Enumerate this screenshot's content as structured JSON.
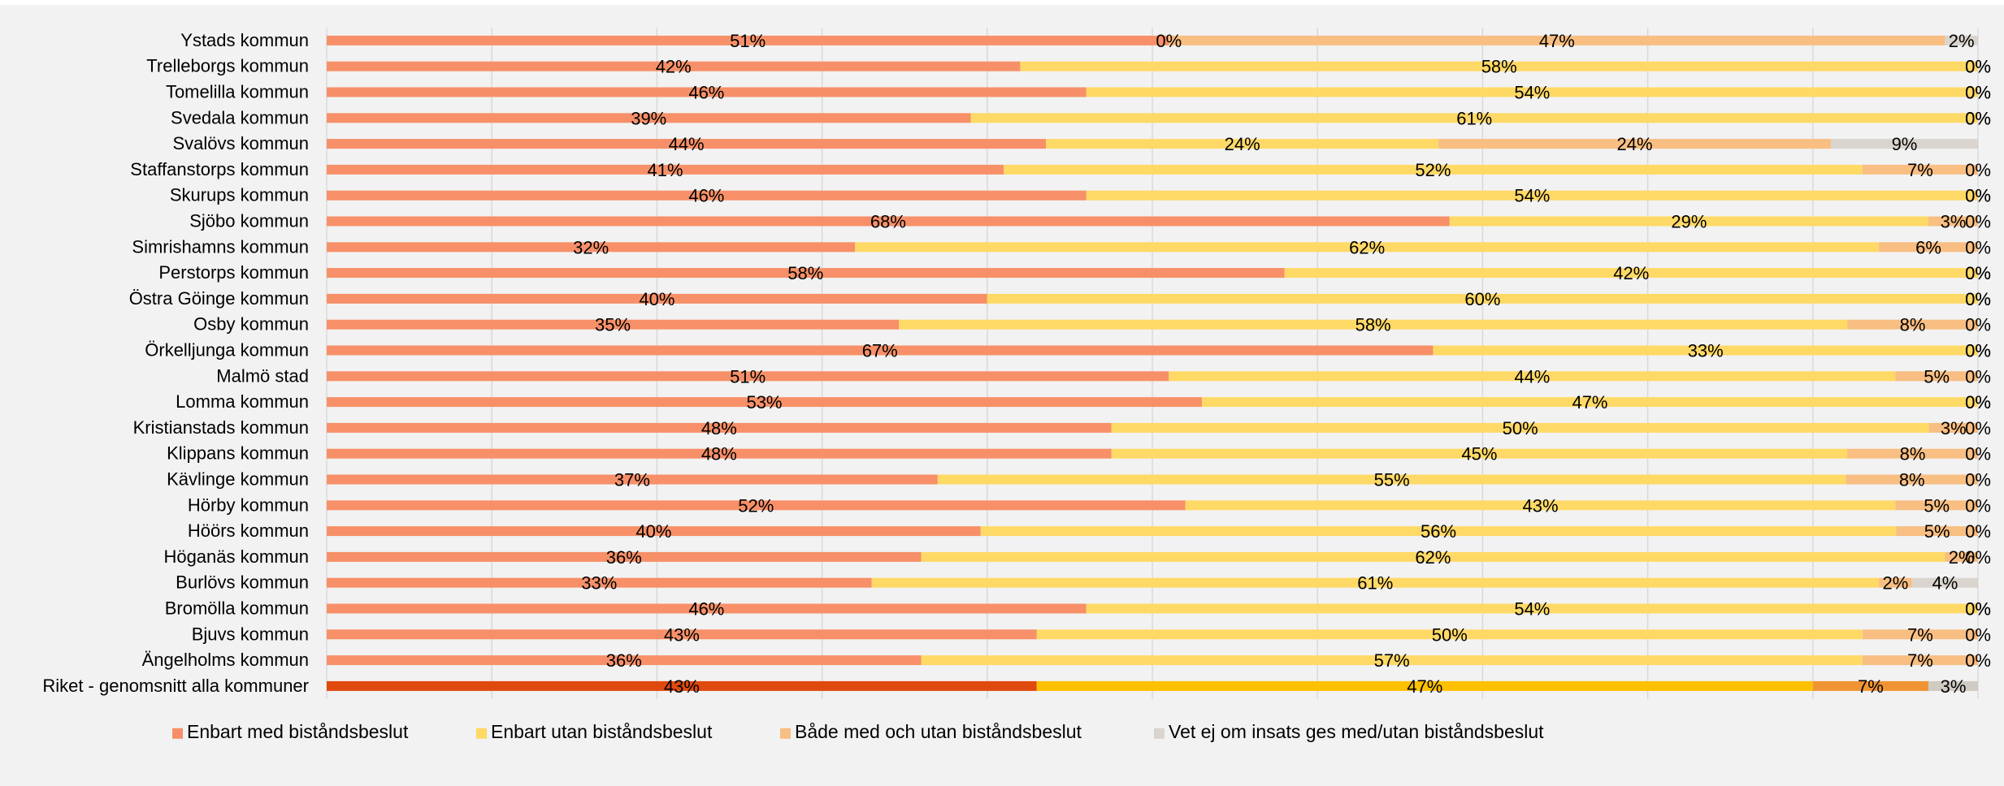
{
  "chart_data": {
    "type": "bar",
    "orientation": "horizontal",
    "stacked": true,
    "normalized": true,
    "xlim": [
      0,
      100
    ],
    "grid": true,
    "legend_position": "bottom",
    "categories": [
      "Ystads kommun",
      "Trelleborgs kommun",
      "Tomelilla kommun",
      "Svedala kommun",
      "Svalövs kommun",
      "Staffanstorps kommun",
      "Skurups kommun",
      "Sjöbo kommun",
      "Simrishamns kommun",
      "Perstorps kommun",
      "Östra Göinge kommun",
      "Osby kommun",
      "Örkelljunga kommun",
      "Malmö stad",
      "Lomma kommun",
      "Kristianstads kommun",
      "Klippans kommun",
      "Kävlinge kommun",
      "Hörby kommun",
      "Höörs kommun",
      "Höganäs kommun",
      "Burlövs kommun",
      "Bromölla kommun",
      "Bjuvs kommun",
      "Ängelholms kommun",
      "Riket - genomsnitt alla kommuner"
    ],
    "series": [
      {
        "name": "Enbart med biståndsbeslut",
        "color": "#f79068",
        "highlight_color": "#e0490e",
        "values": [
          51,
          42,
          46,
          39,
          44,
          41,
          46,
          68,
          32,
          58,
          40,
          35,
          67,
          51,
          53,
          48,
          48,
          37,
          52,
          40,
          36,
          33,
          46,
          43,
          36,
          43
        ],
        "labels": [
          "51%",
          "42%",
          "46%",
          "39%",
          "44%",
          "41%",
          "46%",
          "68%",
          "32%",
          "58%",
          "40%",
          "35%",
          "67%",
          "51%",
          "53%",
          "48%",
          "48%",
          "37%",
          "52%",
          "40%",
          "36%",
          "33%",
          "46%",
          "43%",
          "36%",
          "43%"
        ]
      },
      {
        "name": "Enbart utan biståndsbeslut",
        "color": "#ffd966",
        "highlight_color": "#ffc000",
        "values": [
          0,
          58,
          54,
          61,
          24,
          52,
          54,
          29,
          62,
          42,
          60,
          58,
          33,
          44,
          47,
          50,
          45,
          55,
          43,
          56,
          62,
          61,
          54,
          50,
          57,
          47
        ],
        "labels": [
          "0%",
          "58%",
          "54%",
          "61%",
          "24%",
          "52%",
          "54%",
          "29%",
          "62%",
          "42%",
          "60%",
          "58%",
          "33%",
          "44%",
          "47%",
          "50%",
          "45%",
          "55%",
          "43%",
          "56%",
          "62%",
          "61%",
          "54%",
          "50%",
          "57%",
          "47%"
        ]
      },
      {
        "name": "Både med och utan biståndsbeslut",
        "color": "#f8be82",
        "highlight_color": "#f09433",
        "values": [
          47,
          0,
          0,
          0,
          24,
          7,
          0,
          3,
          6,
          0,
          0,
          8,
          0,
          5,
          0,
          3,
          8,
          8,
          5,
          5,
          2,
          2,
          0,
          7,
          7,
          7
        ],
        "labels": [
          "47%",
          "0%",
          "0%",
          "0%",
          "24%",
          "7%",
          "0%",
          "3%",
          "6%",
          "0%",
          "0%",
          "8%",
          "0%",
          "5%",
          "0%",
          "3%",
          "8%",
          "8%",
          "5%",
          "5%",
          "2%",
          "2%",
          "0%",
          "7%",
          "7%",
          "7%"
        ]
      },
      {
        "name": "Vet ej om insats ges med/utan biståndsbeslut",
        "color": "#d9d5ce",
        "highlight_color": "#cfcbc3",
        "values": [
          2,
          0,
          0,
          0,
          9,
          0,
          0,
          0,
          0,
          0,
          0,
          0,
          0,
          0,
          0,
          0,
          0,
          0,
          0,
          0,
          0,
          4,
          0,
          0,
          0,
          3
        ],
        "labels": [
          "2%",
          "0%",
          "0%",
          "0%",
          "9%",
          "0%",
          "0%",
          "0%",
          "0%",
          "0%",
          "0%",
          "0%",
          "0%",
          "0%",
          "0%",
          "0%",
          "0%",
          "0%",
          "0%",
          "0%",
          "0%",
          "4%",
          "0%",
          "0%",
          "0%",
          "3%"
        ]
      }
    ],
    "highlight_category": "Riket - genomsnitt alla kommuner"
  }
}
